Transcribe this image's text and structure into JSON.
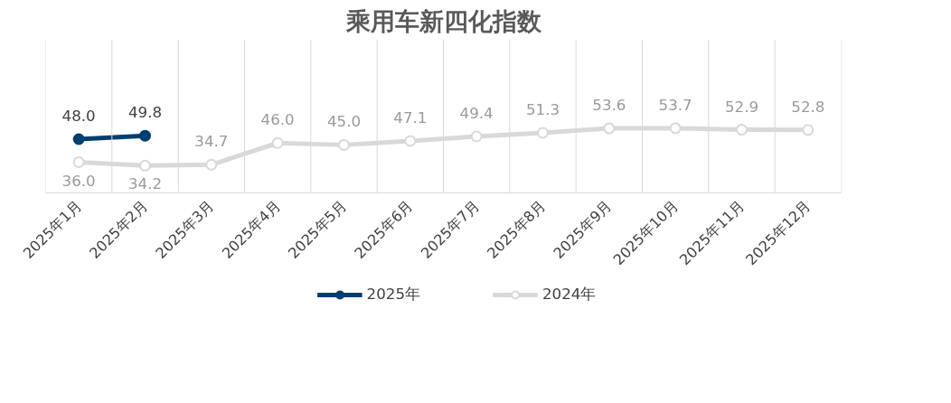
{
  "chart_data": {
    "type": "line",
    "title": "乘用车新四化指数",
    "categories": [
      "2025年1月",
      "2025年2月",
      "2025年3月",
      "2025年4月",
      "2025年5月",
      "2025年6月",
      "2025年7月",
      "2025年8月",
      "2025年9月",
      "2025年10月",
      "2025年11月",
      "2025年12月"
    ],
    "series": [
      {
        "name": "2025年",
        "color": "#003f72",
        "values": [
          48.0,
          49.8,
          null,
          null,
          null,
          null,
          null,
          null,
          null,
          null,
          null,
          null
        ],
        "value_labels": [
          "48.0",
          "49.8",
          null,
          null,
          null,
          null,
          null,
          null,
          null,
          null,
          null,
          null
        ]
      },
      {
        "name": "2024年",
        "color": "#d9d9d9",
        "values": [
          36.0,
          34.2,
          34.7,
          46.0,
          45.0,
          47.1,
          49.4,
          51.3,
          53.6,
          53.7,
          52.9,
          52.8
        ],
        "value_labels": [
          "36.0",
          "34.2",
          "34.7",
          "46.0",
          "45.0",
          "47.1",
          "49.4",
          "51.3",
          "53.6",
          "53.7",
          "52.9",
          "52.8"
        ]
      }
    ],
    "ylim": [
      20,
      100
    ],
    "tick_labels": "x",
    "grid": "x",
    "legend": "bottom",
    "marker": "circle",
    "line_style": "solid"
  }
}
